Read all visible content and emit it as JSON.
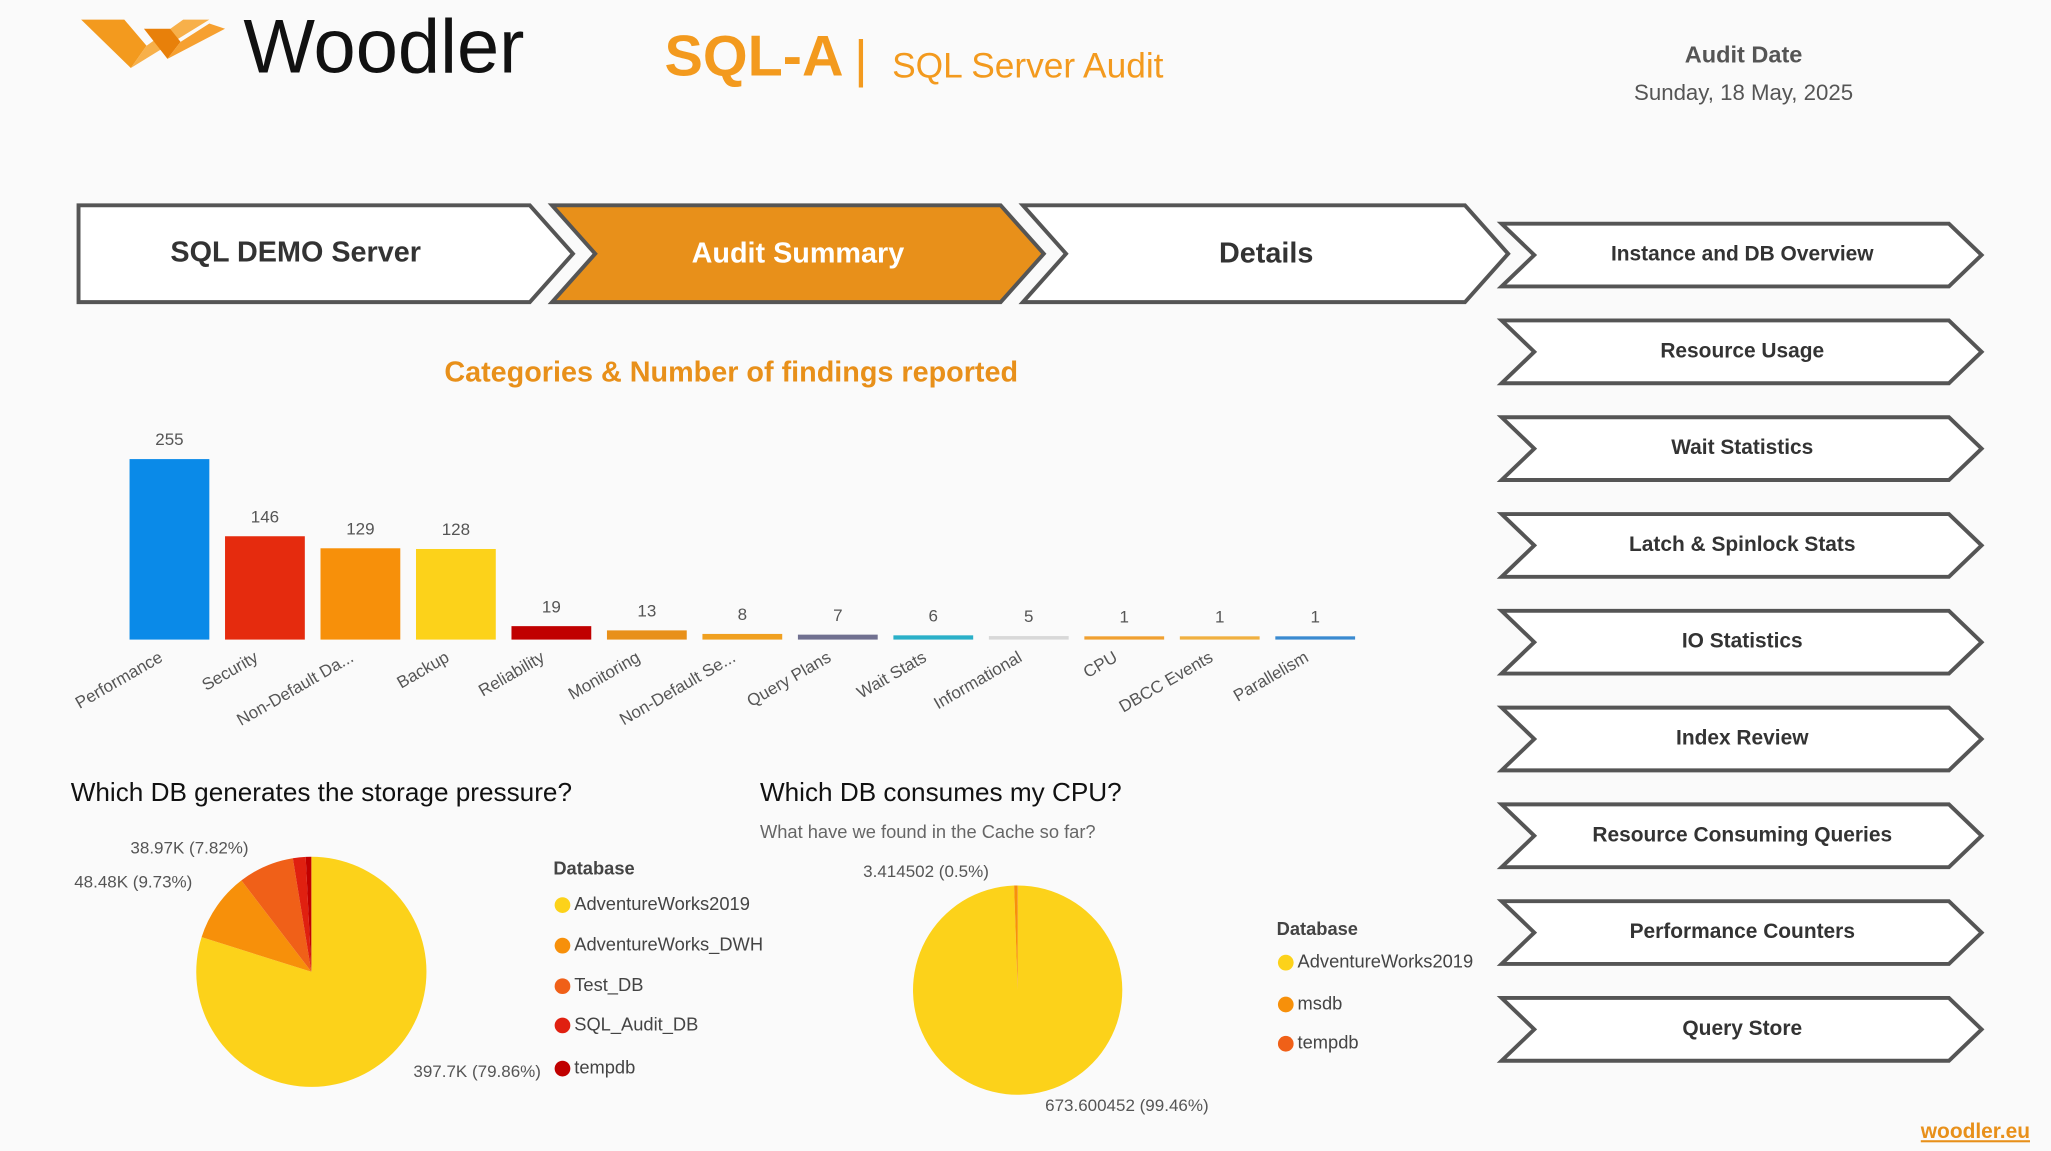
{
  "header": {
    "logo": "Woodler",
    "product": "SQL-A",
    "separator": "|",
    "subtitle": "SQL Server Audit",
    "audit_date_label": "Audit Date",
    "audit_date": "Sunday, 18 May, 2025"
  },
  "breadcrumb": [
    "SQL DEMO Server",
    "Audit Summary",
    "Details"
  ],
  "menu": [
    "Instance and DB Overview",
    "Resource Usage",
    "Wait Statistics",
    "Latch & Spinlock Stats",
    "IO Statistics",
    "Index Review",
    "Resource Consuming Queries",
    "Performance Counters",
    "Query Store"
  ],
  "footer": "woodler.eu",
  "chart_data": [
    {
      "type": "bar",
      "title": "Categories & Number of findings reported",
      "categories": [
        "Performance",
        "Security",
        "Non-Default Da...",
        "Backup",
        "Reliability",
        "Monitoring",
        "Non-Default Se...",
        "Query Plans",
        "Wait Stats",
        "Informational",
        "CPU",
        "DBCC Events",
        "Parallelism"
      ],
      "values": [
        255,
        146,
        129,
        128,
        19,
        13,
        8,
        7,
        6,
        5,
        1,
        1,
        1
      ],
      "colors": [
        "#0a8ae8",
        "#e52b0e",
        "#f7900a",
        "#fcd21a",
        "#c00000",
        "#e8901a",
        "#f0a020",
        "#707090",
        "#2ab0c8",
        "#d8d8d8",
        "#f0a030",
        "#f0b040",
        "#3a8ad0"
      ]
    },
    {
      "type": "pie",
      "title": "Which DB generates the storage pressure?",
      "legend_title": "Database",
      "labels": [
        "AdventureWorks2019",
        "AdventureWorks_DWH",
        "Test_DB",
        "SQL_Audit_DB",
        "tempdb"
      ],
      "values": [
        397.7,
        48.48,
        38.97,
        8.9,
        3.9
      ],
      "value_labels": [
        "397.7K (79.86%)",
        "48.48K (9.73%)",
        "38.97K (7.82%)",
        null,
        null
      ],
      "colors": [
        "#fcd21a",
        "#f7900a",
        "#f06018",
        "#e02010",
        "#c00000"
      ]
    },
    {
      "type": "pie",
      "title": "Which DB consumes my CPU?",
      "subtitle": "What have we found in the Cache so far?",
      "legend_title": "Database",
      "labels": [
        "AdventureWorks2019",
        "msdb",
        "tempdb"
      ],
      "values": [
        673.600452,
        3.414502,
        0.25
      ],
      "value_labels": [
        "673.600452 (99.46%)",
        "3.414502 (0.5%)",
        null
      ],
      "colors": [
        "#fcd21a",
        "#f7900a",
        "#f06018"
      ]
    }
  ]
}
